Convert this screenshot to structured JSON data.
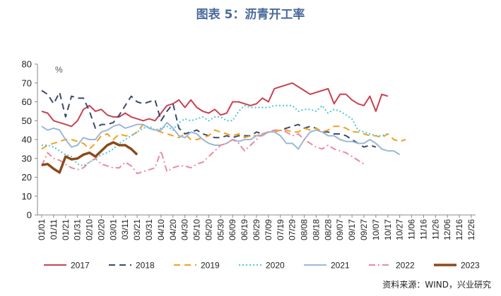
{
  "title": "图表 5：沥青开工率",
  "source": "资料来源：WIND，兴业研究",
  "chart_data": {
    "type": "line",
    "unit": "%",
    "ylim": [
      0,
      80
    ],
    "yticks": [
      0,
      10,
      20,
      30,
      40,
      50,
      60,
      70,
      80
    ],
    "grid": false,
    "legend_position": "bottom",
    "x": [
      "01/01",
      "01/06",
      "01/11",
      "01/16",
      "01/21",
      "01/26",
      "01/31",
      "02/05",
      "02/10",
      "02/15",
      "02/20",
      "02/25",
      "03/01",
      "03/06",
      "03/11",
      "03/16",
      "03/21",
      "03/26",
      "03/31",
      "04/05",
      "04/10",
      "04/15",
      "04/20",
      "04/25",
      "04/30",
      "05/05",
      "05/10",
      "05/15",
      "05/20",
      "05/25",
      "05/30",
      "06/04",
      "06/09",
      "06/14",
      "06/19",
      "06/24",
      "06/29",
      "07/04",
      "07/09",
      "07/14",
      "07/19",
      "07/24",
      "07/29",
      "08/03",
      "08/08",
      "08/13",
      "08/18",
      "08/23",
      "08/28",
      "09/02",
      "09/07",
      "09/12",
      "09/17",
      "09/22",
      "09/27",
      "10/02",
      "10/07",
      "10/12",
      "10/17",
      "10/22",
      "10/27",
      "11/01",
      "11/06",
      "11/11",
      "11/16",
      "11/21",
      "11/26",
      "12/01",
      "12/06",
      "12/11",
      "12/16",
      "12/21",
      "12/26"
    ],
    "xtick_labels": [
      "01/01",
      "01/11",
      "01/21",
      "01/31",
      "02/10",
      "02/20",
      "03/01",
      "03/11",
      "03/21",
      "03/31",
      "04/10",
      "04/20",
      "04/30",
      "05/10",
      "05/20",
      "05/30",
      "06/09",
      "06/19",
      "06/29",
      "07/09",
      "07/19",
      "07/29",
      "08/08",
      "08/18",
      "08/28",
      "09/07",
      "09/17",
      "09/27",
      "10/07",
      "10/17",
      "10/27",
      "11/06",
      "11/16",
      "11/26",
      "12/06",
      "12/16",
      "12/26"
    ],
    "series": [
      {
        "name": "2017",
        "color": "#c8414f",
        "dash": "solid",
        "width": 2,
        "values": [
          55,
          54,
          50,
          49,
          48,
          47,
          50,
          56,
          58,
          55,
          56,
          53,
          52,
          52,
          54,
          52,
          51,
          50,
          51,
          50,
          54,
          58,
          59,
          61,
          57,
          61,
          57,
          55,
          54,
          56,
          53,
          54,
          60,
          60,
          59,
          58,
          59,
          62,
          60,
          67,
          68,
          69,
          70,
          68,
          66,
          64,
          65,
          66,
          67,
          59,
          64,
          64,
          61,
          59,
          58,
          63,
          55,
          64,
          63,
          null,
          null,
          null,
          null,
          null,
          null,
          null,
          null,
          null,
          null,
          null,
          null,
          null,
          null
        ]
      },
      {
        "name": "2018",
        "color": "#3b4a6b",
        "dash": "dash",
        "width": 2,
        "values": [
          66,
          64,
          59,
          65,
          52,
          63,
          62,
          62,
          55,
          46,
          48,
          48,
          49,
          53,
          58,
          63,
          60,
          59,
          60,
          61,
          50,
          55,
          59,
          46,
          43,
          44,
          45,
          43,
          42,
          41,
          41,
          42,
          41,
          42,
          42,
          42,
          44,
          43,
          44,
          44,
          45,
          46,
          47,
          48,
          46,
          47,
          46,
          44,
          44,
          43,
          43,
          42,
          40,
          38,
          36,
          37,
          36,
          null,
          null,
          null,
          null,
          null,
          null,
          null,
          null,
          null,
          null,
          null,
          null,
          null,
          null,
          null,
          null
        ]
      },
      {
        "name": "2019",
        "color": "#f0a020",
        "dash": "dash",
        "width": 2,
        "values": [
          35,
          37,
          38,
          39,
          40,
          40,
          39,
          38,
          35,
          38,
          42,
          43,
          40,
          43,
          42,
          42,
          44,
          48,
          46,
          45,
          44,
          43,
          42,
          41,
          43,
          40,
          40,
          41,
          42,
          45,
          44,
          43,
          42,
          43,
          41,
          42,
          42,
          43,
          44,
          44,
          45,
          45,
          44,
          44,
          46,
          45,
          46,
          44,
          45,
          47,
          47,
          46,
          44,
          44,
          43,
          42,
          42,
          41,
          43,
          40,
          39,
          40,
          null,
          null,
          null,
          null,
          null,
          null,
          null,
          null,
          null,
          null,
          null
        ]
      },
      {
        "name": "2020",
        "color": "#4cc8d0",
        "dash": "dot",
        "width": 2,
        "values": [
          37,
          37,
          36,
          34,
          32,
          31,
          27,
          26,
          28,
          30,
          32,
          33,
          35,
          38,
          40,
          42,
          44,
          46,
          47,
          45,
          46,
          47,
          45,
          49,
          51,
          50,
          51,
          52,
          50,
          52,
          52,
          50,
          50,
          55,
          58,
          57,
          57,
          57,
          57,
          58,
          58,
          58,
          58,
          55,
          56,
          56,
          55,
          58,
          54,
          56,
          55,
          53,
          51,
          45,
          44,
          43,
          42,
          42,
          43,
          null,
          null,
          null,
          null,
          null,
          null,
          null,
          null,
          null,
          null,
          null,
          null,
          null,
          null
        ]
      },
      {
        "name": "2021",
        "color": "#9ab8d8",
        "dash": "solid",
        "width": 2,
        "values": [
          47,
          45,
          46,
          45,
          40,
          36,
          37,
          41,
          40,
          40,
          44,
          45,
          47,
          48,
          46,
          47,
          48,
          48,
          46,
          45,
          45,
          49,
          46,
          42,
          41,
          44,
          43,
          40,
          38,
          37,
          37,
          38,
          40,
          39,
          40,
          40,
          42,
          42,
          44,
          44,
          42,
          38,
          38,
          35,
          40,
          44,
          45,
          44,
          42,
          42,
          40,
          39,
          39,
          38,
          38,
          40,
          38,
          35,
          34,
          34,
          32,
          null,
          null,
          null,
          null,
          null,
          null,
          null,
          null,
          null,
          null,
          null,
          null
        ]
      },
      {
        "name": "2022",
        "color": "#e88aa0",
        "dash": "dashdot",
        "width": 2,
        "values": [
          26,
          33,
          30,
          29,
          27,
          25,
          24,
          25,
          28,
          30,
          27,
          26,
          25,
          25,
          28,
          26,
          22,
          23,
          24,
          25,
          34,
          23,
          25,
          26,
          26,
          25,
          27,
          28,
          31,
          34,
          37,
          38,
          40,
          38,
          34,
          37,
          40,
          43,
          44,
          45,
          45,
          44,
          42,
          43,
          40,
          38,
          36,
          35,
          37,
          35,
          34,
          33,
          31,
          29,
          27,
          null,
          null,
          null,
          null,
          null,
          null,
          null,
          null,
          null,
          null,
          null,
          null,
          null,
          null,
          null,
          null,
          null,
          null
        ]
      },
      {
        "name": "2023",
        "color": "#8b4a1a",
        "dash": "solid",
        "width": 3.5,
        "values": [
          26.5,
          27,
          24.5,
          22.5,
          31,
          29.5,
          30,
          32,
          33,
          31,
          34,
          37,
          38.5,
          37,
          37,
          35,
          32,
          null,
          null,
          null,
          null,
          null,
          null,
          null,
          null,
          null,
          null,
          null,
          null,
          null,
          null,
          null,
          null,
          null,
          null,
          null,
          null,
          null,
          null,
          null,
          null,
          null,
          null,
          null,
          null,
          null,
          null,
          null,
          null,
          null,
          null,
          null,
          null,
          null,
          null,
          null,
          null,
          null,
          null,
          null,
          null,
          null,
          null,
          null,
          null,
          null,
          null,
          null,
          null,
          null,
          null,
          null,
          null
        ]
      }
    ]
  }
}
